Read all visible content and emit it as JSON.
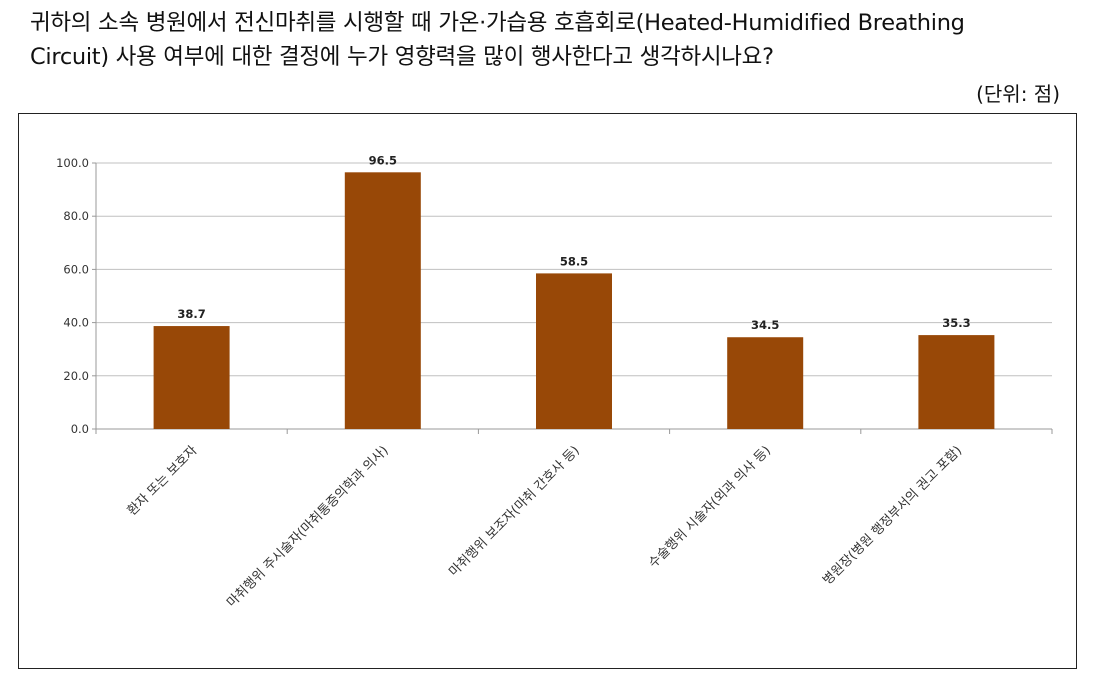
{
  "question": {
    "line1": "귀하의 소속 병원에서 전신마취를 시행할 때 가온·가습용 호흡회로(Heated-Humidified Breathing",
    "line2": "Circuit) 사용 여부에 대한 결정에 누가 영향력을 많이 행사한다고 생각하시나요?"
  },
  "unit_label": "(단위: 점)",
  "chart_data": {
    "type": "bar",
    "categories": [
      "환자 또는 보호자",
      "마취행위 주시술자(마취통증의학과 의사)",
      "마취행위 보조자(마취 간호사 등)",
      "수술행위 시술자(외과 의사 등)",
      "병원장(병원 행정부서의 권고 포함)"
    ],
    "values": [
      38.7,
      96.5,
      58.5,
      34.5,
      35.3
    ],
    "value_labels": [
      "38.7",
      "96.5",
      "58.5",
      "34.5",
      "35.3"
    ],
    "ylim": [
      0,
      100
    ],
    "yticks": [
      "0.0",
      "20.0",
      "40.0",
      "60.0",
      "80.0",
      "100.0"
    ],
    "grid": true,
    "bar_color": "#984807",
    "grid_color": "#c0c0c0"
  }
}
